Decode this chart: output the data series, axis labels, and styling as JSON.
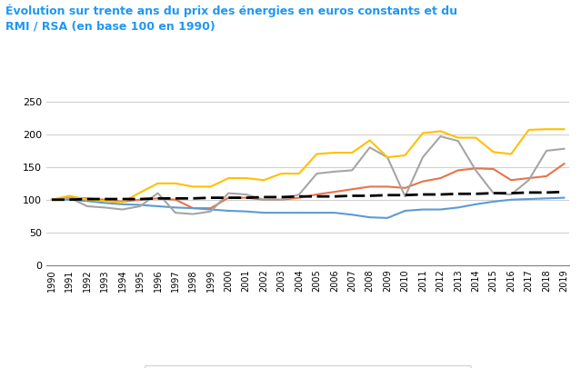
{
  "years": [
    1990,
    1991,
    1992,
    1993,
    1994,
    1995,
    1996,
    1997,
    1998,
    1999,
    2000,
    2001,
    2002,
    2003,
    2004,
    2005,
    2006,
    2007,
    2008,
    2009,
    2010,
    2011,
    2012,
    2013,
    2014,
    2015,
    2016,
    2017,
    2018,
    2019
  ],
  "gaz_naturel": [
    100,
    103,
    102,
    100,
    97,
    100,
    102,
    100,
    87,
    87,
    103,
    103,
    100,
    100,
    103,
    108,
    112,
    116,
    120,
    120,
    118,
    128,
    133,
    145,
    148,
    147,
    130,
    133,
    136,
    155
  ],
  "electricite": [
    100,
    100,
    98,
    95,
    93,
    92,
    90,
    88,
    87,
    85,
    83,
    82,
    80,
    80,
    80,
    80,
    80,
    77,
    73,
    72,
    83,
    85,
    85,
    88,
    93,
    97,
    100,
    101,
    102,
    103
  ],
  "fioul_domestique": [
    100,
    103,
    90,
    88,
    85,
    90,
    110,
    80,
    78,
    82,
    110,
    108,
    100,
    100,
    108,
    140,
    143,
    145,
    180,
    165,
    105,
    165,
    197,
    190,
    145,
    110,
    108,
    130,
    175,
    178
  ],
  "propane": [
    100,
    106,
    100,
    98,
    96,
    111,
    125,
    125,
    120,
    120,
    133,
    133,
    130,
    140,
    140,
    170,
    172,
    172,
    191,
    165,
    168,
    202,
    205,
    195,
    195,
    173,
    170,
    207,
    208,
    208
  ],
  "rmi_rsa": [
    100,
    100,
    101,
    101,
    101,
    101,
    102,
    102,
    102,
    103,
    103,
    103,
    104,
    104,
    105,
    105,
    105,
    106,
    106,
    107,
    107,
    108,
    108,
    109,
    109,
    110,
    110,
    111,
    111,
    112
  ],
  "title_line1": "Évolution sur trente ans du prix des énergies en euros constants et du",
  "title_line2": "RMI / RSA (en base 100 en 1990)",
  "color_gaz": "#E8734A",
  "color_elec": "#5B9BD5",
  "color_fioul": "#A5A5A5",
  "color_propane": "#FFC000",
  "color_rmi": "#000000",
  "color_title": "#1F97F3",
  "ylim_min": 0,
  "ylim_max": 265,
  "yticks": [
    0,
    50,
    100,
    150,
    200,
    250
  ]
}
